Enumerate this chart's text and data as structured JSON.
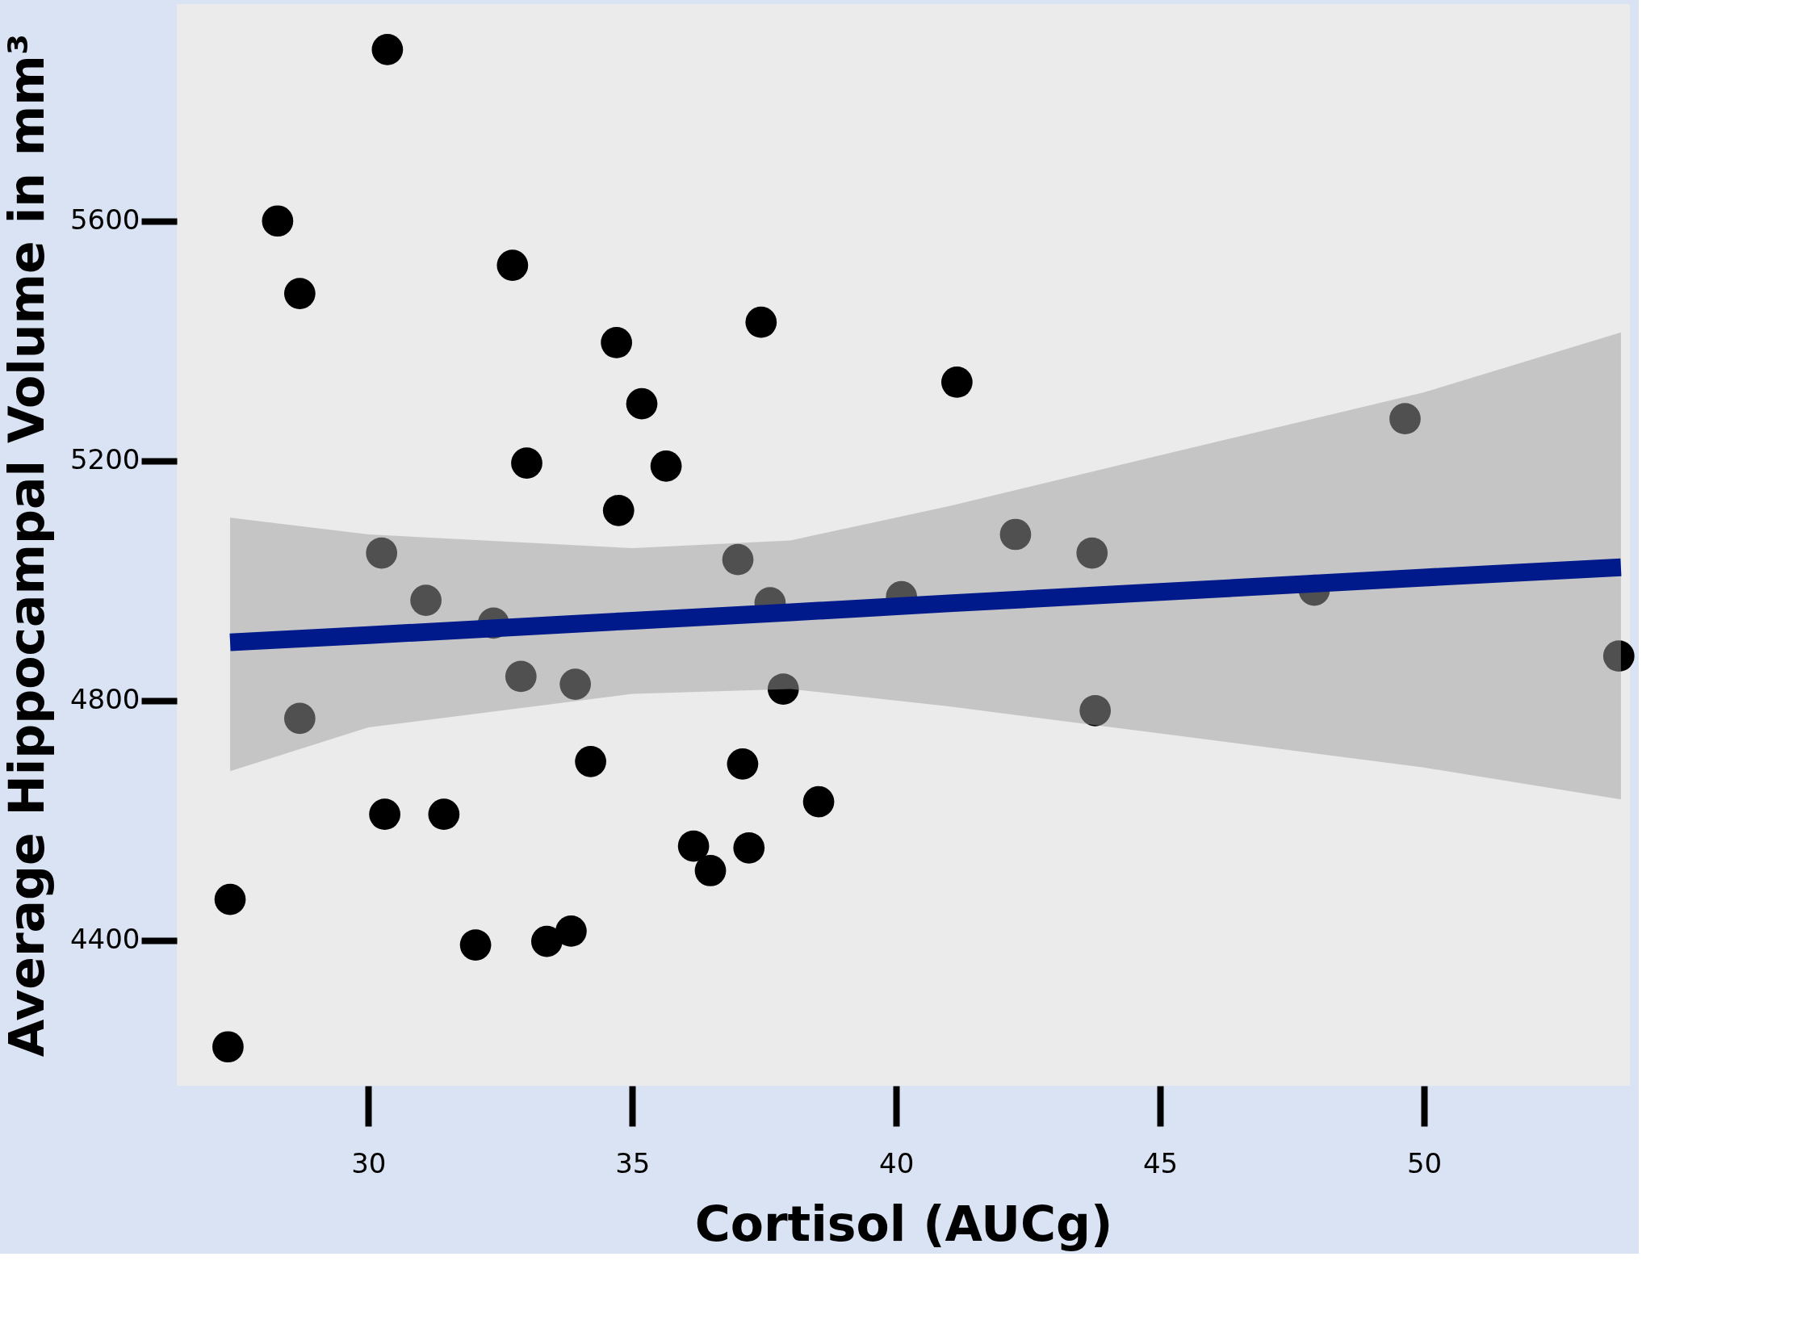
{
  "chart_data": {
    "type": "scatter",
    "xlabel": "Cortisol (AUCg)",
    "ylabel": "Average Hippocampal Volume in mm³",
    "xlim": [
      26.37,
      53.9
    ],
    "ylim": [
      4157,
      5962
    ],
    "xticks": [
      30,
      35,
      40,
      45,
      50
    ],
    "yticks": [
      4400,
      4800,
      5200,
      5600
    ],
    "grid": false,
    "series": [
      {
        "color": "#000000",
        "marker": "circle",
        "x": [
          30.36,
          28.28,
          28.7,
          32.73,
          34.7,
          37.44,
          35.18,
          33.0,
          35.64,
          41.15,
          34.74,
          49.64,
          30.25,
          31.09,
          32.37,
          37.0,
          37.61,
          40.1,
          42.26,
          43.71,
          47.92,
          53.69,
          32.89,
          33.92,
          37.86,
          28.7,
          43.77,
          34.21,
          37.09,
          38.53,
          30.31,
          31.43,
          36.16,
          37.21,
          36.48,
          27.38,
          32.03,
          33.38,
          33.84,
          27.34
        ],
        "values": [
          5886,
          5600,
          5479,
          5526,
          5397,
          5431,
          5295,
          5196,
          5191,
          5331,
          5117,
          5270,
          5046,
          4967,
          4929,
          5035,
          4963,
          4973,
          5077,
          5046,
          4984,
          4874,
          4840,
          4827,
          4819,
          4770,
          4783,
          4698,
          4694,
          4631,
          4610,
          4610,
          4557,
          4554,
          4516,
          4468,
          4392,
          4398,
          4415,
          4222
        ]
      },
      {
        "type": "line",
        "color": "#001a8c",
        "marker": "none",
        "line_style": "solid",
        "x": [
          27.38,
          30,
          35,
          38,
          41,
          45,
          50,
          53.73
        ],
        "values": [
          4897,
          4909,
          4933,
          4947,
          4962,
          4981,
          5005,
          5022
        ],
        "lower": [
          4682,
          4755,
          4811,
          4819,
          4790,
          4745,
          4688,
          4635
        ],
        "upper": [
          5105,
          5077,
          5054,
          5067,
          5124,
          5209,
          5314,
          5414
        ]
      }
    ]
  }
}
